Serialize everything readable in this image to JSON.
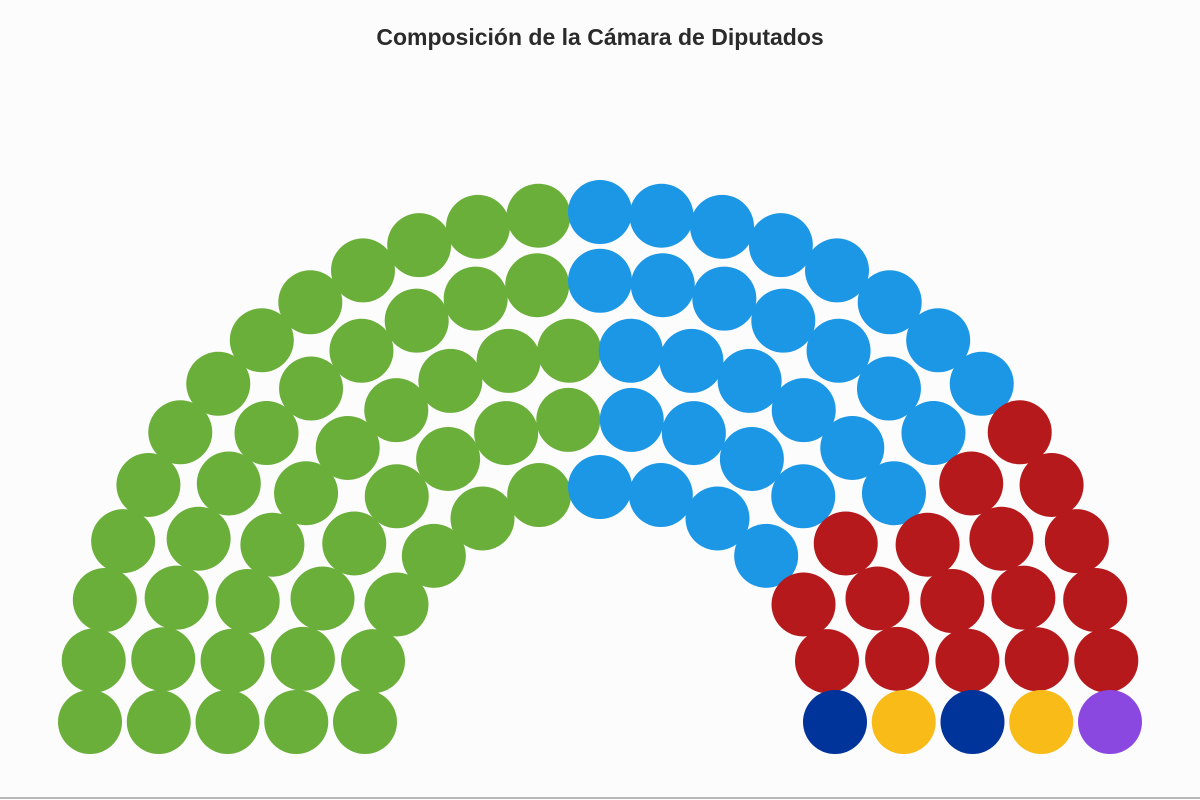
{
  "chart_data": {
    "type": "parliament",
    "title": "Composición de la Cámara de Diputados",
    "values": [
      48,
      29,
      17,
      2,
      2,
      1
    ],
    "colors": [
      "#6aaf3a",
      "#1b97e6",
      "#b5191c",
      "#f8bb18",
      "#00349a",
      "#8a48e0"
    ]
  }
}
